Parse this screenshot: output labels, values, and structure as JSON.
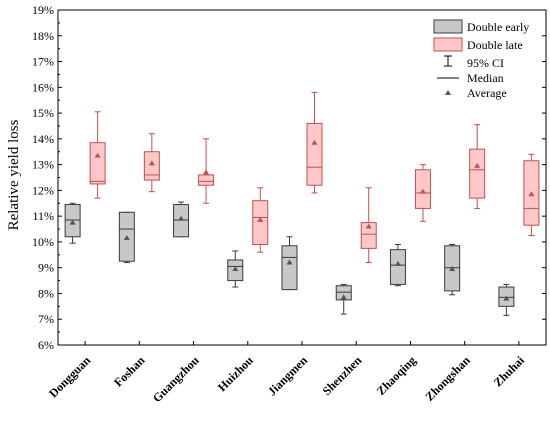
{
  "chart_data": {
    "type": "boxplot",
    "title": "",
    "xlabel": "",
    "ylabel": "Relative yield loss",
    "ylim": [
      6,
      19
    ],
    "y_ticks": [
      "6%",
      "7%",
      "8%",
      "9%",
      "10%",
      "11%",
      "12%",
      "13%",
      "14%",
      "15%",
      "16%",
      "17%",
      "18%",
      "19%"
    ],
    "grid": false,
    "legend_position": "top-right",
    "categories": [
      "Dongguan",
      "Foshan",
      "Guangzhou",
      "Huizhou",
      "Jiangmen",
      "Shenzhen",
      "Zhaoqing",
      "Zhongshan",
      "Zhuhai"
    ],
    "legend": {
      "double_early": "Double early",
      "double_late": "Double late",
      "ci": "95% CI",
      "median": "Median",
      "average": "Average"
    },
    "series": [
      {
        "name": "Double early",
        "color": "#c8c8c8",
        "stroke": "#3a3a3a",
        "boxes": [
          {
            "whisker_low": 9.95,
            "q1": 10.2,
            "median": 10.85,
            "q3": 11.45,
            "whisker_high": 11.5,
            "mean": 10.75
          },
          {
            "whisker_low": 9.2,
            "q1": 9.25,
            "median": 10.5,
            "q3": 11.15,
            "whisker_high": 11.15,
            "mean": 10.15
          },
          {
            "whisker_low": 10.2,
            "q1": 10.2,
            "median": 10.85,
            "q3": 11.45,
            "whisker_high": 11.55,
            "mean": 10.9
          },
          {
            "whisker_low": 8.25,
            "q1": 8.5,
            "median": 9.05,
            "q3": 9.3,
            "whisker_high": 9.65,
            "mean": 8.95
          },
          {
            "whisker_low": 8.15,
            "q1": 8.15,
            "median": 9.4,
            "q3": 9.85,
            "whisker_high": 10.2,
            "mean": 9.2
          },
          {
            "whisker_low": 7.2,
            "q1": 7.75,
            "median": 8.05,
            "q3": 8.3,
            "whisker_high": 8.35,
            "mean": 7.85
          },
          {
            "whisker_low": 8.3,
            "q1": 8.35,
            "median": 9.1,
            "q3": 9.7,
            "whisker_high": 9.9,
            "mean": 9.15
          },
          {
            "whisker_low": 7.95,
            "q1": 8.1,
            "median": 9.0,
            "q3": 9.85,
            "whisker_high": 9.9,
            "mean": 8.95
          },
          {
            "whisker_low": 7.15,
            "q1": 7.5,
            "median": 7.85,
            "q3": 8.25,
            "whisker_high": 8.35,
            "mean": 7.8
          }
        ]
      },
      {
        "name": "Double late",
        "color": "#ffc8c8",
        "stroke": "#c0504d",
        "boxes": [
          {
            "whisker_low": 11.7,
            "q1": 12.25,
            "median": 12.35,
            "q3": 13.85,
            "whisker_high": 15.05,
            "mean": 13.35
          },
          {
            "whisker_low": 11.95,
            "q1": 12.4,
            "median": 12.6,
            "q3": 13.5,
            "whisker_high": 14.2,
            "mean": 13.05
          },
          {
            "whisker_low": 11.5,
            "q1": 12.2,
            "median": 12.35,
            "q3": 12.6,
            "whisker_high": 14.0,
            "mean": 12.7
          },
          {
            "whisker_low": 9.6,
            "q1": 9.9,
            "median": 10.95,
            "q3": 11.6,
            "whisker_high": 12.1,
            "mean": 10.85
          },
          {
            "whisker_low": 11.9,
            "q1": 12.2,
            "median": 12.9,
            "q3": 14.6,
            "whisker_high": 15.8,
            "mean": 13.85
          },
          {
            "whisker_low": 9.2,
            "q1": 9.75,
            "median": 10.3,
            "q3": 10.75,
            "whisker_high": 12.1,
            "mean": 10.6
          },
          {
            "whisker_low": 10.8,
            "q1": 11.3,
            "median": 11.9,
            "q3": 12.8,
            "whisker_high": 13.0,
            "mean": 11.95
          },
          {
            "whisker_low": 11.3,
            "q1": 11.7,
            "median": 12.8,
            "q3": 13.6,
            "whisker_high": 14.55,
            "mean": 12.95
          },
          {
            "whisker_low": 10.25,
            "q1": 10.65,
            "median": 11.3,
            "q3": 13.15,
            "whisker_high": 13.4,
            "mean": 11.85
          }
        ]
      }
    ]
  }
}
